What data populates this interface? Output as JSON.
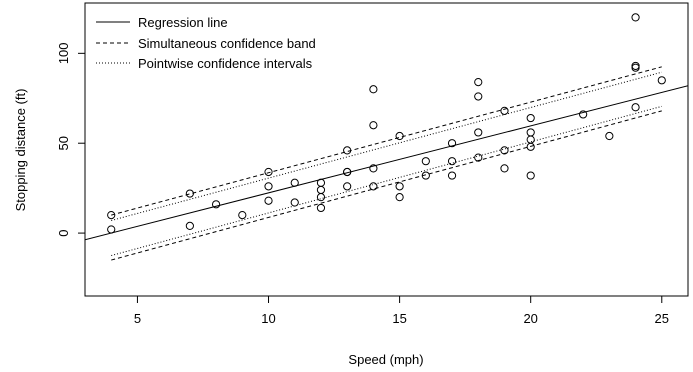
{
  "chart_data": {
    "type": "scatter",
    "title": "",
    "xlabel": "Speed (mph)",
    "ylabel": "Stopping distance (ft)",
    "xlim": [
      3,
      26
    ],
    "ylim": [
      -35,
      128
    ],
    "xticks": [
      5,
      10,
      15,
      20,
      25
    ],
    "yticks": [
      0,
      50,
      100
    ],
    "grid": false,
    "legend_position": "top-left",
    "legend": [
      {
        "label": "Regression line",
        "style": "solid"
      },
      {
        "label": "Simultaneous confidence band",
        "style": "dashed"
      },
      {
        "label": "Pointwise confidence intervals",
        "style": "dotted"
      }
    ],
    "points": [
      [
        4,
        2
      ],
      [
        4,
        10
      ],
      [
        7,
        4
      ],
      [
        7,
        22
      ],
      [
        8,
        16
      ],
      [
        9,
        10
      ],
      [
        10,
        18
      ],
      [
        10,
        26
      ],
      [
        10,
        34
      ],
      [
        11,
        17
      ],
      [
        11,
        28
      ],
      [
        12,
        14
      ],
      [
        12,
        20
      ],
      [
        12,
        24
      ],
      [
        12,
        28
      ],
      [
        13,
        26
      ],
      [
        13,
        34
      ],
      [
        13,
        34
      ],
      [
        13,
        46
      ],
      [
        14,
        26
      ],
      [
        14,
        36
      ],
      [
        14,
        60
      ],
      [
        14,
        80
      ],
      [
        15,
        20
      ],
      [
        15,
        26
      ],
      [
        15,
        54
      ],
      [
        16,
        32
      ],
      [
        16,
        40
      ],
      [
        17,
        32
      ],
      [
        17,
        40
      ],
      [
        17,
        50
      ],
      [
        18,
        42
      ],
      [
        18,
        56
      ],
      [
        18,
        76
      ],
      [
        18,
        84
      ],
      [
        19,
        36
      ],
      [
        19,
        46
      ],
      [
        19,
        68
      ],
      [
        20,
        32
      ],
      [
        20,
        48
      ],
      [
        20,
        52
      ],
      [
        20,
        56
      ],
      [
        20,
        64
      ],
      [
        22,
        66
      ],
      [
        23,
        54
      ],
      [
        24,
        70
      ],
      [
        24,
        92
      ],
      [
        24,
        93
      ],
      [
        24,
        120
      ],
      [
        25,
        85
      ]
    ],
    "series": [
      {
        "name": "Regression line",
        "style": "solid",
        "x": [
          3,
          26
        ],
        "y": [
          -3.7,
          82.0
        ]
      },
      {
        "name": "Simultaneous confidence band",
        "style": "dashed",
        "x": [
          4,
          25
        ],
        "y_upper": [
          10.0,
          92.5
        ],
        "y_lower": [
          -15.0,
          68.0
        ]
      },
      {
        "name": "Pointwise confidence intervals",
        "style": "dotted",
        "x": [
          4,
          25
        ],
        "y_upper": [
          7.0,
          89.5
        ],
        "y_lower": [
          -12.5,
          70.5
        ]
      }
    ]
  }
}
